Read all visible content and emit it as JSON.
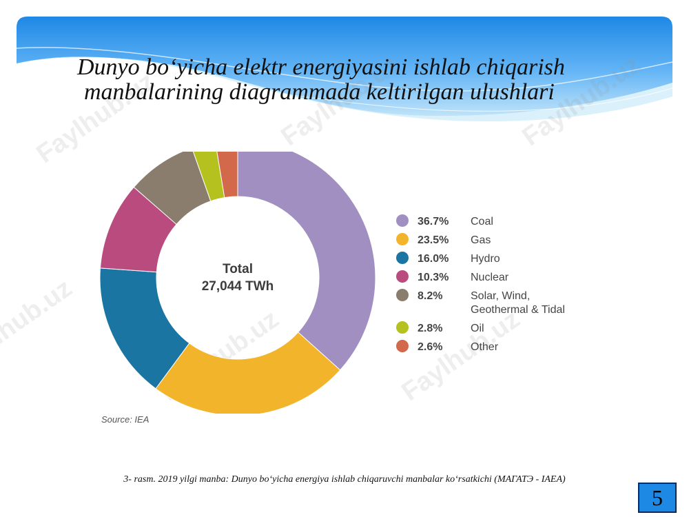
{
  "slide": {
    "title_lines": [
      "Dunyo bo‘yicha elektr energiyasini ishlab chiqarish",
      "manbalarining diagrammada keltirilgan ulushlari"
    ],
    "watermark": "Faylhub.uz",
    "source": "Source: IEA",
    "caption": "3- rasm. 2019 yilgi manba: Dunyo bo‘yicha energiya ishlab chiqaruvchi manbalar ko‘rsatkichi (МАГАТЭ - IAEA)",
    "page_number": "5",
    "colors": {
      "banner_top": "#1e88e5",
      "banner_light": "#bfe3f8",
      "page_box": "#1e88e5"
    }
  },
  "chart_data": {
    "type": "pie",
    "donut": true,
    "center_label": [
      "Total",
      "27,044 TWh"
    ],
    "legend_position": "right",
    "slices": [
      {
        "label": "Coal",
        "value": 36.7,
        "pct_text": "36.7%",
        "color": "#a08fc0"
      },
      {
        "label": "Gas",
        "value": 23.5,
        "pct_text": "23.5%",
        "color": "#f2b42a"
      },
      {
        "label": "Hydro",
        "value": 16.0,
        "pct_text": "16.0%",
        "color": "#1b75a3"
      },
      {
        "label": "Nuclear",
        "value": 10.3,
        "pct_text": "10.3%",
        "color": "#b94b7f"
      },
      {
        "label": "Solar, Wind, Geothermal & Tidal",
        "label_lines": [
          "Solar, Wind,",
          "Geothermal & Tidal"
        ],
        "value": 8.2,
        "pct_text": "8.2%",
        "color": "#8a7d6d"
      },
      {
        "label": "Oil",
        "value": 2.8,
        "pct_text": "2.8%",
        "color": "#b4c11e"
      },
      {
        "label": "Other",
        "value": 2.6,
        "pct_text": "2.6%",
        "color": "#d2694a"
      }
    ]
  }
}
